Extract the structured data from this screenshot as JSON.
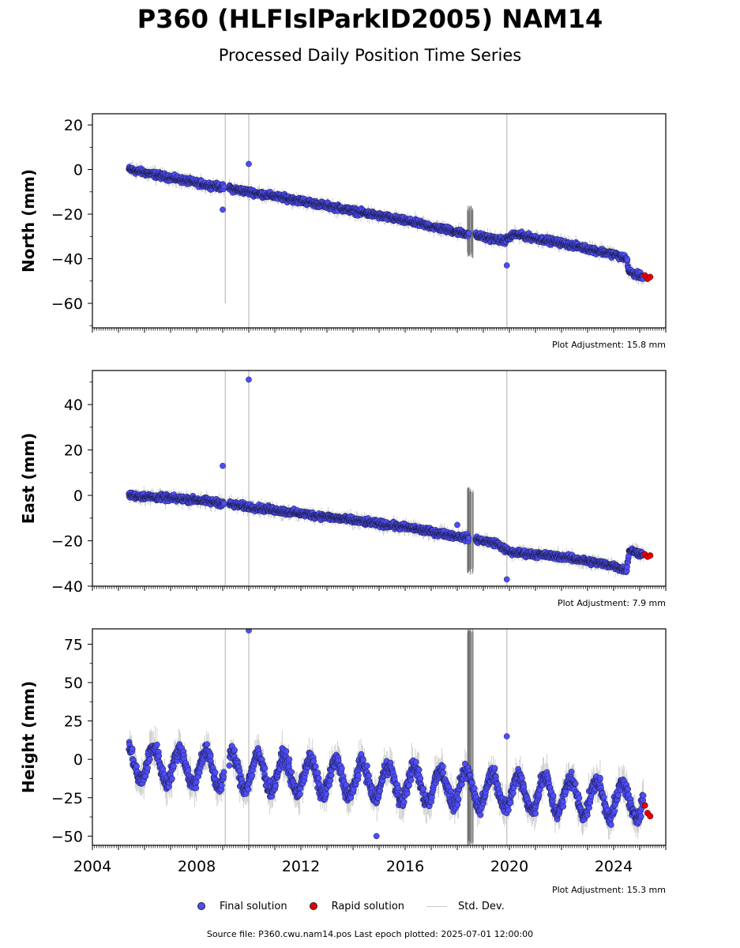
{
  "header": {
    "title": "P360 (HLFIslParkID2005) NAM14",
    "subtitle": "Processed Daily Position Time Series"
  },
  "colors": {
    "final": "#4d4dfb",
    "rapid": "#e60000",
    "std_dev": "#c9c9c9",
    "std_dev_dense": "#6b6b6b"
  },
  "legend": {
    "final_label": "Final solution",
    "rapid_label": "Rapid solution",
    "std_label": "Std. Dev."
  },
  "footer": {
    "source": "Source file: P360.cwu.nam14.pos  Last epoch plotted: 2025-07-01 12:00:00"
  },
  "x_axis": {
    "range": [
      2004,
      2026
    ],
    "ticks": [
      2004,
      2008,
      2012,
      2016,
      2020,
      2024
    ],
    "tick_labels": [
      "2004",
      "2008",
      "2012",
      "2016",
      "2020",
      "2024"
    ]
  },
  "chart_data": [
    {
      "type": "scatter",
      "ylabel": "North (mm)",
      "ylim": [
        -71,
        25
      ],
      "yticks": [
        20,
        0,
        -20,
        -40,
        -60
      ],
      "ytick_labels": [
        "20",
        "0",
        "−20",
        "−40",
        "−60"
      ],
      "adjustment": "Plot Adjustment: 15.8 mm",
      "final_trend": [
        [
          2005.4,
          0
        ],
        [
          2008.0,
          -6
        ],
        [
          2012.0,
          -14
        ],
        [
          2016.0,
          -23
        ],
        [
          2018.0,
          -28
        ],
        [
          2019.8,
          -32
        ],
        [
          2020.2,
          -29
        ],
        [
          2022.0,
          -33
        ],
        [
          2024.0,
          -38
        ],
        [
          2024.5,
          -40
        ],
        [
          2024.6,
          -46
        ],
        [
          2025.1,
          -48
        ]
      ],
      "rapid": [
        [
          2025.2,
          -47.5
        ],
        [
          2025.3,
          -49.0
        ],
        [
          2025.4,
          -48.2
        ]
      ],
      "outliers": [
        [
          2009.0,
          -18
        ],
        [
          2010.0,
          2.5
        ],
        [
          2019.9,
          -43
        ]
      ],
      "std_spikes": [
        [
          2009.1,
          -60,
          25
        ],
        [
          2010.0,
          -71,
          25
        ],
        [
          2019.9,
          -71,
          25
        ]
      ],
      "dense_std": [
        [
          2018.5,
          -40,
          -16
        ]
      ]
    },
    {
      "type": "scatter",
      "ylabel": "East (mm)",
      "ylim": [
        -40,
        55
      ],
      "yticks": [
        40,
        20,
        0,
        -20,
        -40
      ],
      "ytick_labels": [
        "40",
        "20",
        "0",
        "−20",
        "−40"
      ],
      "adjustment": "Plot Adjustment: 7.9 mm",
      "final_trend": [
        [
          2005.4,
          0
        ],
        [
          2008.0,
          -2
        ],
        [
          2012.0,
          -8
        ],
        [
          2016.0,
          -14
        ],
        [
          2018.0,
          -18
        ],
        [
          2019.5,
          -21
        ],
        [
          2020.0,
          -25
        ],
        [
          2022.0,
          -27
        ],
        [
          2024.0,
          -31
        ],
        [
          2024.5,
          -33
        ],
        [
          2024.6,
          -24
        ],
        [
          2025.1,
          -26
        ]
      ],
      "rapid": [
        [
          2025.2,
          -26
        ],
        [
          2025.3,
          -27
        ],
        [
          2025.4,
          -26.5
        ]
      ],
      "outliers": [
        [
          2009.0,
          13
        ],
        [
          2010.0,
          51
        ],
        [
          2019.9,
          -37
        ],
        [
          2018.0,
          -13
        ]
      ],
      "std_spikes": [
        [
          2009.1,
          -40,
          55
        ],
        [
          2010.0,
          -40,
          55
        ],
        [
          2019.9,
          -40,
          55
        ]
      ],
      "dense_std": [
        [
          2018.5,
          -35,
          4
        ]
      ]
    },
    {
      "type": "scatter",
      "ylabel": "Height (mm)",
      "ylim": [
        -56,
        85
      ],
      "yticks": [
        75,
        50,
        25,
        0,
        -25,
        -50
      ],
      "ytick_labels": [
        "75",
        "50",
        "25",
        "0",
        "−25",
        "−50"
      ],
      "adjustment": "Plot Adjustment: 15.3 mm",
      "seasonal": {
        "start": 2005.4,
        "end": 2025.1,
        "offset": -2,
        "slope": -1.3,
        "amplitude": 11
      },
      "rapid": [
        [
          2025.2,
          -30
        ],
        [
          2025.3,
          -35
        ],
        [
          2025.4,
          -37
        ]
      ],
      "outliers": [
        [
          2010.0,
          84
        ],
        [
          2014.9,
          -50
        ],
        [
          2019.9,
          15
        ]
      ],
      "std_spikes": [
        [
          2009.1,
          -56,
          85
        ],
        [
          2010.0,
          -56,
          85
        ],
        [
          2019.9,
          -56,
          85
        ]
      ],
      "dense_std": [
        [
          2018.5,
          -56,
          85
        ]
      ]
    }
  ]
}
